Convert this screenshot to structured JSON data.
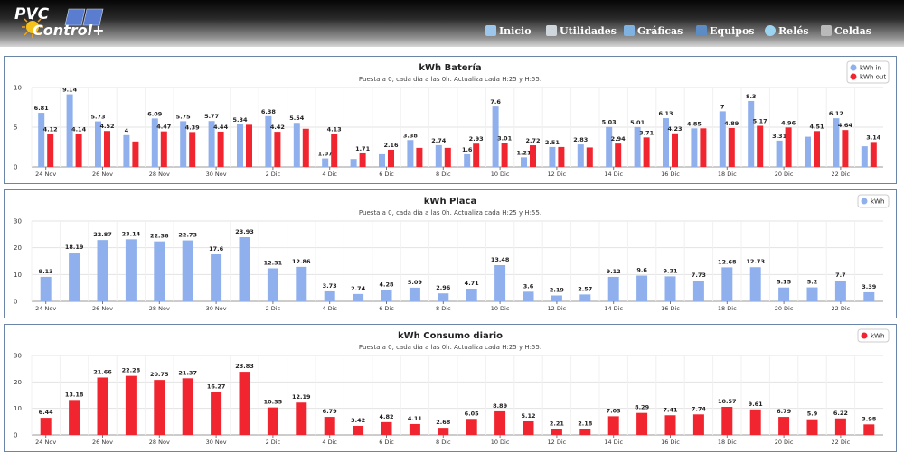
{
  "header": {
    "logo_text_top": "PVC",
    "logo_text_bottom": "Control+",
    "nav": [
      {
        "label": "Inicio",
        "icon": "home-icon"
      },
      {
        "label": "Utilidades",
        "icon": "tools-icon"
      },
      {
        "label": "Gráficas",
        "icon": "chart-icon"
      },
      {
        "label": "Equipos",
        "icon": "device-icon"
      },
      {
        "label": "Relés",
        "icon": "relay-icon"
      },
      {
        "label": "Celdas",
        "icon": "battery-cells-icon"
      }
    ]
  },
  "colors": {
    "blue": "#8fb0ec",
    "red": "#f0252f",
    "border": "#6b85a8",
    "grid": "#e3e3e3"
  },
  "x_labels": [
    "24 Nov",
    "26 Nov",
    "28 Nov",
    "30 Nov",
    "2 Dic",
    "4 Dic",
    "6 Dic",
    "8 Dic",
    "10 Dic",
    "12 Dic",
    "14 Dic",
    "16 Dic",
    "18 Dic",
    "20 Dic",
    "22 Dic"
  ],
  "chart_data": [
    {
      "type": "bar",
      "title": "kWh Batería",
      "subtitle": "Puesta a 0, cada día a las 0h. Actualiza cada H:25 y H:55.",
      "ylim": [
        0,
        10
      ],
      "yticks": [
        0,
        5,
        10
      ],
      "grid": true,
      "legend_position": "top-right",
      "series": [
        {
          "name": "kWh in",
          "color": "#8fb0ec",
          "values": [
            6.81,
            9.14,
            5.73,
            4,
            6.09,
            5.75,
            5.77,
            5.34,
            6.38,
            5.54,
            1.07,
            1,
            1.6,
            3.38,
            2.74,
            1.6,
            7.6,
            1.21,
            2.51,
            2.83,
            5.03,
            5.01,
            6.13,
            4.85,
            7,
            8.3,
            3.31,
            3.8,
            6.12,
            2.6
          ]
        },
        {
          "name": "kWh out",
          "color": "#f0252f",
          "values": [
            4.12,
            4.14,
            4.52,
            3.2,
            4.47,
            4.39,
            4.44,
            5.3,
            4.42,
            4.8,
            4.13,
            1.71,
            2.16,
            2.4,
            2.4,
            2.93,
            3.01,
            2.72,
            2.51,
            2.45,
            2.94,
            3.71,
            4.23,
            4.85,
            4.89,
            5.17,
            4.96,
            4.51,
            4.64,
            3.14
          ]
        }
      ],
      "bar_labels": [
        [
          "6.81",
          "4.12"
        ],
        [
          "9.14",
          "4.14"
        ],
        [
          "5.73",
          "4.52"
        ],
        [
          "4",
          ""
        ],
        [
          "6.09",
          "4.47"
        ],
        [
          "5.75",
          "4.39"
        ],
        [
          "5.77",
          "4.44"
        ],
        [
          "5.34",
          ""
        ],
        [
          "6.38",
          "4.42"
        ],
        [
          "5.54",
          ""
        ],
        [
          "1.07",
          "4.13"
        ],
        [
          "",
          "1.71"
        ],
        [
          "",
          "2.16"
        ],
        [
          "3.38",
          ""
        ],
        [
          "2.74",
          ""
        ],
        [
          "1.6",
          "2.93"
        ],
        [
          "7.6",
          "3.01"
        ],
        [
          "1.21",
          "2.72"
        ],
        [
          "2.51",
          ""
        ],
        [
          "2.83",
          ""
        ],
        [
          "5.03",
          "2.94"
        ],
        [
          "5.01",
          "3.71"
        ],
        [
          "6.13",
          "4.23"
        ],
        [
          "4.85",
          ""
        ],
        [
          "7",
          "4.89"
        ],
        [
          "8.3",
          "5.17"
        ],
        [
          "3.31",
          "4.96"
        ],
        [
          "",
          "4.51"
        ],
        [
          "6.12",
          "4.64"
        ],
        [
          "",
          "3.14"
        ]
      ]
    },
    {
      "type": "bar",
      "title": "kWh Placa",
      "subtitle": "Puesta a 0, cada día a las 0h. Actualiza cada H:25 y H:55.",
      "ylim": [
        0,
        30
      ],
      "yticks": [
        0,
        10,
        20,
        30
      ],
      "grid": true,
      "legend_position": "top-right",
      "series": [
        {
          "name": "kWh",
          "color": "#8fb0ec",
          "values": [
            9.13,
            18.19,
            22.87,
            23.14,
            22.36,
            22.73,
            17.6,
            23.93,
            12.31,
            12.86,
            3.73,
            2.74,
            4.28,
            5.09,
            2.96,
            4.71,
            13.48,
            3.6,
            2.19,
            2.57,
            9.12,
            9.6,
            9.31,
            7.73,
            12.68,
            12.73,
            5.15,
            5.2,
            7.7,
            3.39
          ]
        }
      ]
    },
    {
      "type": "bar",
      "title": "kWh Consumo diario",
      "subtitle": "Puesta a 0, cada día a las 0h. Actualiza cada H:25 y H:55.",
      "ylim": [
        0,
        30
      ],
      "yticks": [
        0,
        10,
        20,
        30
      ],
      "grid": true,
      "legend_position": "top-right",
      "series": [
        {
          "name": "kWh",
          "color": "#f0252f",
          "values": [
            6.44,
            13.18,
            21.66,
            22.28,
            20.75,
            21.37,
            16.27,
            23.83,
            10.35,
            12.19,
            6.79,
            3.42,
            4.82,
            4.11,
            2.68,
            6.05,
            8.89,
            5.12,
            2.21,
            2.18,
            7.03,
            8.29,
            7.41,
            7.74,
            10.57,
            9.61,
            6.79,
            5.9,
            6.22,
            3.98
          ]
        }
      ]
    }
  ]
}
